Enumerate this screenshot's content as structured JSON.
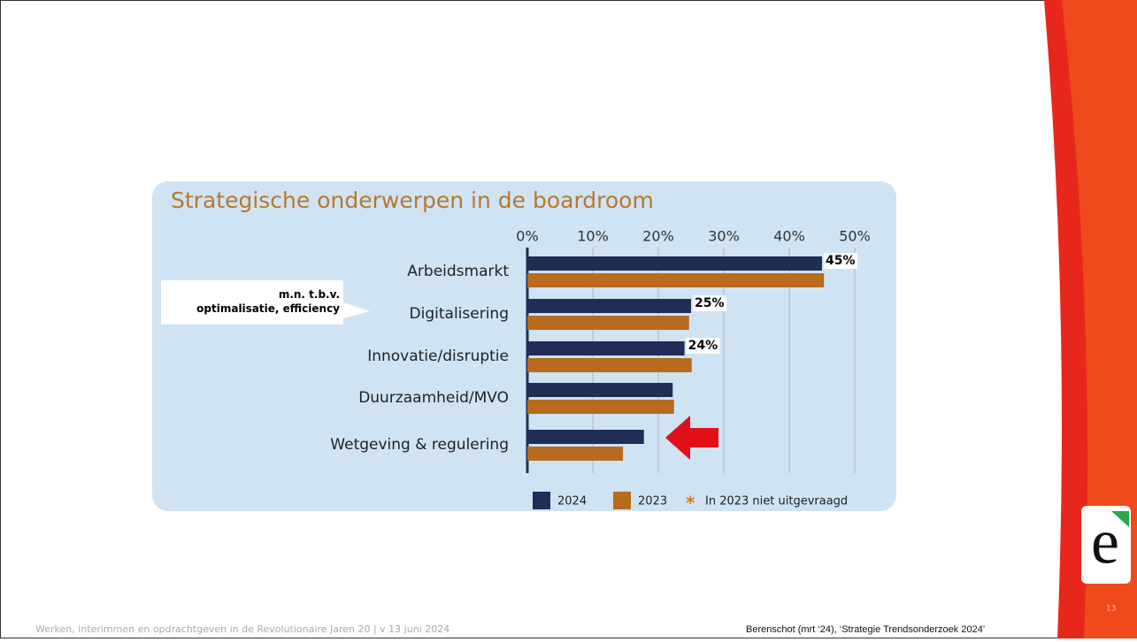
{
  "chart_data": {
    "type": "hbar",
    "title": "Strategische onderwerpen in de boardroom",
    "categories": [
      "Arbeidsmarkt",
      "Digitalisering",
      "Innovatie/disruptie",
      "Duurzaamheid/MVO",
      "Wetgeving & regulering"
    ],
    "series": [
      {
        "name": "2024",
        "color": "#1f2d57",
        "values": [
          45,
          25,
          24,
          22.2,
          17.8
        ],
        "value_labels": [
          "45%",
          "25%",
          "24%",
          null,
          null
        ]
      },
      {
        "name": "2023",
        "color": "#b86a1e",
        "values": [
          45.3,
          24.7,
          25.1,
          22.4,
          14.6
        ]
      }
    ],
    "note": "In 2023 niet uitgevraagd",
    "note_symbol": "*",
    "xlim": [
      0,
      50
    ],
    "xticks": [
      {
        "value": 0,
        "label": "0%"
      },
      {
        "value": 10,
        "label": "10%"
      },
      {
        "value": 20,
        "label": "20%"
      },
      {
        "value": 30,
        "label": "30%"
      },
      {
        "value": 40,
        "label": "40%"
      },
      {
        "value": 50,
        "label": "50%"
      }
    ],
    "grid": true,
    "annotation": "m.n. t.b.v.\noptimalisatie, efficiency"
  },
  "footer": {
    "left": "Werken, interimmen en opdrachtgeven in de Revolutionaire Jaren 20  |  v 13 juni 2024",
    "source": "Berenschot (mrt ‘24), ‘Strategie Trendsonderzoek 2024’",
    "page": "13"
  }
}
